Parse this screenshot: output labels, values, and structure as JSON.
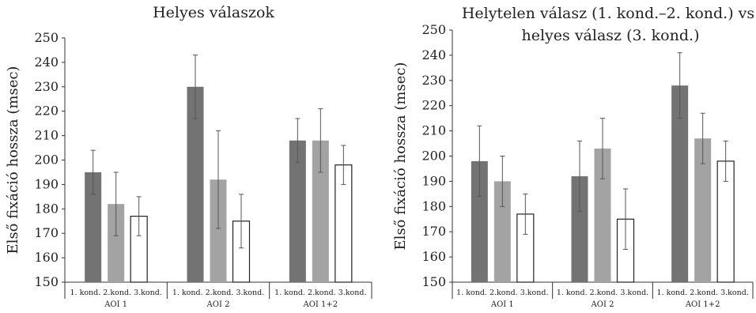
{
  "chart_data": [
    {
      "type": "bar",
      "title": "Helyes válaszok",
      "ylabel": "Első fixáció hossza (msec)",
      "xlabel": "",
      "ylim": [
        150,
        250
      ],
      "yticks": [
        150,
        160,
        170,
        180,
        190,
        200,
        210,
        220,
        230,
        240,
        250
      ],
      "grid": false,
      "groups": [
        "AOI 1",
        "AOI 2",
        "AOI 1+2"
      ],
      "categories": [
        "1. kond.",
        "2.kond.",
        "3.kond."
      ],
      "series": [
        {
          "values": [
            195,
            230,
            208
          ],
          "error": [
            9,
            13,
            9
          ],
          "color": "#737373"
        },
        {
          "values": [
            182,
            192,
            208
          ],
          "error": [
            13,
            20,
            13
          ],
          "color": "#a3a3a3"
        },
        {
          "values": [
            177,
            175,
            198
          ],
          "error": [
            8,
            11,
            8
          ],
          "color": "#ffffff"
        }
      ]
    },
    {
      "type": "bar",
      "title_lines": [
        "Helytelen válasz (1. kond.–2. kond.) vs.",
        "helyes válasz (3. kond.)"
      ],
      "ylabel": "Első fixáció hossza (msec)",
      "xlabel": "",
      "ylim": [
        150,
        250
      ],
      "yticks": [
        150,
        160,
        170,
        180,
        190,
        200,
        210,
        220,
        230,
        240,
        250
      ],
      "grid": false,
      "groups": [
        "AOI 1",
        "AOI 2",
        "AOI 1+2"
      ],
      "categories": [
        "1. kond.",
        "2.kond.",
        "3.kond."
      ],
      "series": [
        {
          "values": [
            198,
            192,
            228
          ],
          "error": [
            14,
            14,
            13
          ],
          "color": "#737373"
        },
        {
          "values": [
            190,
            203,
            207
          ],
          "error": [
            10,
            12,
            10
          ],
          "color": "#a3a3a3"
        },
        {
          "values": [
            177,
            175,
            198
          ],
          "error": [
            8,
            12,
            8
          ],
          "color": "#ffffff"
        }
      ]
    }
  ]
}
